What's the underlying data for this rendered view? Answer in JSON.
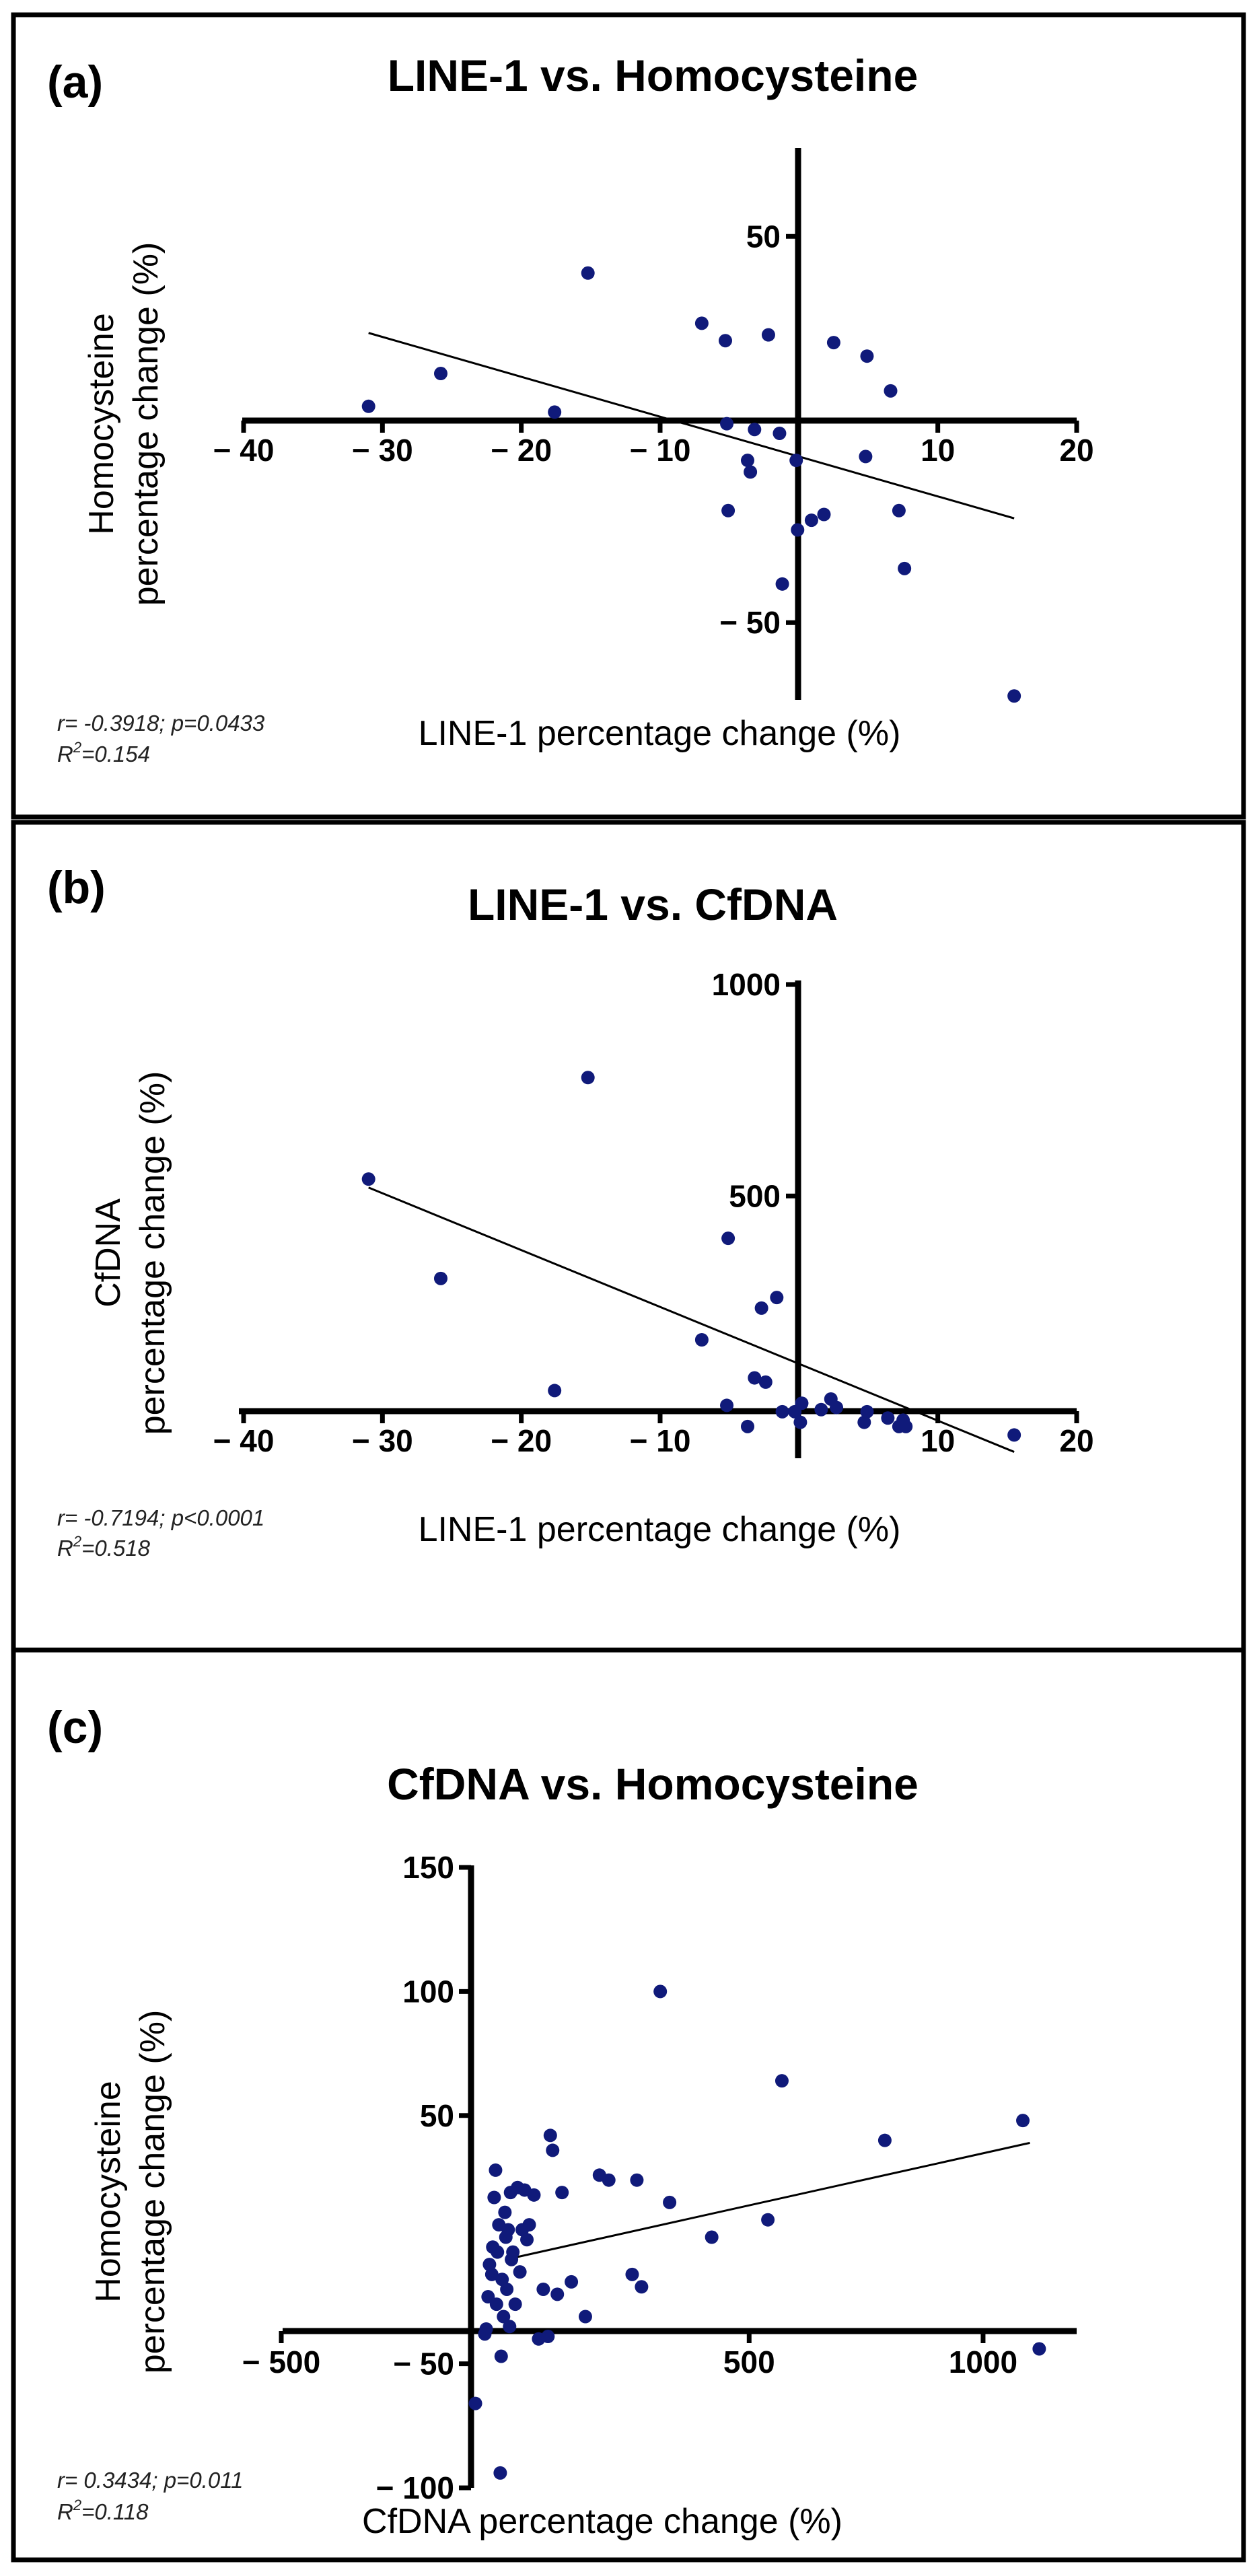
{
  "colors": {
    "point": "#101a7a",
    "axis": "#000000",
    "fit": "#000000",
    "frame": "#000000"
  },
  "chart_data": [
    {
      "type": "scatter",
      "panel_label": "(a)",
      "title": "LINE-1 vs. Homocysteine",
      "xlabel": "LINE-1 percentage change (%)",
      "ylabel": [
        "Homocysteine",
        "percentage change (%)"
      ],
      "xlim": [
        -40,
        20
      ],
      "ylim": [
        -70,
        72
      ],
      "x_ticks": [
        -40,
        -30,
        -20,
        -10,
        10,
        20
      ],
      "x_tick_labels": [
        "− 40",
        "− 30",
        "− 20",
        "− 10",
        "10",
        "20"
      ],
      "y_ticks": [
        50,
        -50
      ],
      "y_tick_labels": [
        "50",
        "− 50"
      ],
      "stats_line1": "r= -0.3918; p=0.0433",
      "stats_r2_prefix": "R",
      "stats_r2_value": "=0.154",
      "fit": {
        "x": [
          -31,
          15.5
        ],
        "y": [
          25,
          -23
        ]
      },
      "points": {
        "x": [
          -31,
          -25.8,
          -17.6,
          -15.2,
          -7,
          -5.3,
          -5.1,
          -5.2,
          -3.7,
          -3.5,
          -3.2,
          -2.2,
          -1.4,
          -1.2,
          -0.1,
          -0.2,
          0.9,
          1.8,
          2.5,
          4.8,
          4.9,
          6.6,
          7.2,
          7.6,
          15.5
        ],
        "y": [
          6,
          14.5,
          4.5,
          40.5,
          27.5,
          23,
          -21,
          1.5,
          -8,
          -11,
          0,
          24.5,
          -1,
          -40,
          -26,
          -8,
          -23.5,
          -22,
          22.5,
          -7,
          19,
          10,
          -21,
          -36,
          -69
        ]
      },
      "svg_origin_y": 0
    },
    {
      "type": "scatter",
      "panel_label": "(b)",
      "title": "LINE-1 vs. CfDNA",
      "xlabel": "LINE-1 percentage change (%)",
      "ylabel": [
        "CfDNA",
        "percentage change (%)"
      ],
      "xlim": [
        -40,
        20
      ],
      "ylim": [
        -120,
        1000
      ],
      "x_ticks": [
        -40,
        -30,
        -20,
        -10,
        10,
        20
      ],
      "x_tick_labels": [
        "− 40",
        "− 30",
        "− 20",
        "− 10",
        "10",
        "20"
      ],
      "y_ticks": [
        1000,
        500
      ],
      "y_tick_labels": [
        "1000",
        "500"
      ],
      "stats_line1": "r= -0.7194; p<0.0001",
      "stats_r2_prefix": "R",
      "stats_r2_value": "=0.518",
      "fit": {
        "x": [
          -31,
          15.5
        ],
        "y": [
          520,
          -105
        ]
      },
      "points": {
        "x": [
          -31,
          -25.8,
          -17.6,
          -15.2,
          -7,
          -5.2,
          -5.1,
          -3.7,
          -3.2,
          -2.7,
          -2.4,
          -1.6,
          -1.2,
          -0.3,
          0.1,
          0.2,
          1.6,
          2.3,
          2.7,
          4.7,
          4.9,
          6.4,
          7.2,
          7.5,
          7.7,
          15.5
        ],
        "y": [
          540,
          305,
          40,
          780,
          160,
          5,
          400,
          -45,
          70,
          235,
          60,
          260,
          -10,
          -10,
          -35,
          10,
          -5,
          20,
          0,
          -35,
          -10,
          -25,
          -45,
          -30,
          -45,
          -65
        ]
      },
      "svg_origin_y": 1222
    },
    {
      "type": "scatter",
      "panel_label": "(c)",
      "title": "CfDNA vs. Homocysteine",
      "xlabel": "CfDNA percentage change (%)",
      "ylabel": [
        "Homocysteine",
        "percentage change (%)"
      ],
      "xlim": [
        -500,
        1200
      ],
      "ylim": [
        -100,
        150
      ],
      "x_ticks": [
        -500,
        500,
        1000
      ],
      "x_tick_labels": [
        "− 500",
        "500",
        "1000"
      ],
      "y_ticks": [
        150,
        100,
        50,
        -50,
        -100
      ],
      "y_tick_labels": [
        "150",
        "100",
        "50",
        "− 50",
        "− 100"
      ],
      "stats_line1": "r= 0.3434; p=0.011",
      "stats_r2_prefix": "R",
      "stats_r2_value": "=0.118",
      "fit": {
        "x": [
          -20,
          1100
        ],
        "y": [
          -8,
          39
        ]
      },
      "points": {
        "x": [
          -85,
          -65,
          -62,
          -58,
          -55,
          -50,
          -48,
          -45,
          -42,
          -40,
          -38,
          -35,
          -32,
          -30,
          -28,
          -25,
          -22,
          -20,
          -18,
          -15,
          -12,
          -10,
          -8,
          -5,
          0,
          5,
          10,
          15,
          20,
          25,
          30,
          40,
          50,
          60,
          70,
          75,
          80,
          90,
          100,
          120,
          150,
          180,
          200,
          250,
          260,
          270,
          310,
          330,
          420,
          540,
          570,
          790,
          1085,
          1120
        ],
        "y": [
          -66,
          -38,
          -36,
          -23,
          -10,
          -14,
          -3,
          17,
          28,
          -26,
          -5,
          6,
          -94,
          -47,
          -16,
          -31,
          11,
          1,
          -20,
          4,
          -35,
          19,
          -8,
          -5,
          -26,
          21,
          -13,
          4,
          20,
          0,
          6,
          18,
          -40,
          -20,
          -39,
          42,
          36,
          -22,
          19,
          -17,
          -31,
          26,
          24,
          -14,
          24,
          -19,
          100,
          15,
          1,
          8,
          64,
          40,
          48,
          -44
        ]
      },
      "svg_origin_y": 2452
    }
  ]
}
